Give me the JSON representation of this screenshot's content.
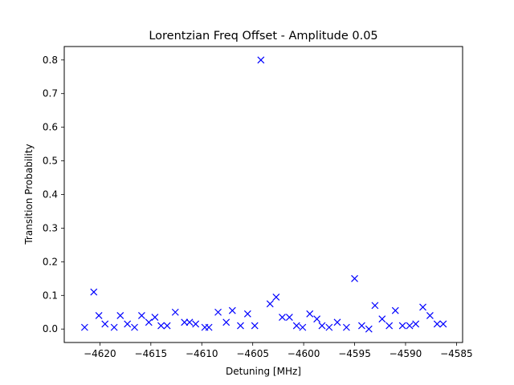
{
  "chart_data": {
    "type": "scatter",
    "title": "Lorentzian Freq Offset - Amplitude 0.05",
    "xlabel": "Detuning [MHz]",
    "ylabel": "Transition Probability",
    "xlim": [
      -4623.5,
      -4584.4
    ],
    "ylim": [
      -0.04,
      0.84
    ],
    "xticks": [
      -4620,
      -4615,
      -4610,
      -4605,
      -4600,
      -4595,
      -4590,
      -4585
    ],
    "xtick_labels": [
      "−4620",
      "−4615",
      "−4610",
      "−4605",
      "−4600",
      "−4595",
      "−4590",
      "−4585"
    ],
    "yticks": [
      0.0,
      0.1,
      0.2,
      0.3,
      0.4,
      0.5,
      0.6,
      0.7,
      0.8
    ],
    "ytick_labels": [
      "0.0",
      "0.1",
      "0.2",
      "0.3",
      "0.4",
      "0.5",
      "0.6",
      "0.7",
      "0.8"
    ],
    "marker": "x",
    "color": "#0000ff",
    "grid": false,
    "series": [
      {
        "x": [
          -4621.5,
          -4620.6,
          -4620.1,
          -4619.5,
          -4618.6,
          -4618.0,
          -4617.3,
          -4616.6,
          -4615.9,
          -4615.2,
          -4614.6,
          -4614.0,
          -4613.4,
          -4612.6,
          -4611.7,
          -4611.2,
          -4610.6,
          -4609.7,
          -4609.3,
          -4608.4,
          -4607.6,
          -4607.0,
          -4606.2,
          -4605.5,
          -4604.8,
          -4604.2,
          -4603.3,
          -4602.7,
          -4602.1,
          -4601.4,
          -4600.7,
          -4600.1,
          -4599.4,
          -4598.7,
          -4598.2,
          -4597.5,
          -4596.7,
          -4595.8,
          -4595.0,
          -4594.3,
          -4593.6,
          -4593.0,
          -4592.3,
          -4591.6,
          -4591.0,
          -4590.3,
          -4589.6,
          -4589.0,
          -4588.3,
          -4587.6,
          -4586.9,
          -4586.3
        ],
        "y": [
          0.005,
          0.11,
          0.04,
          0.015,
          0.005,
          0.04,
          0.015,
          0.005,
          0.04,
          0.02,
          0.035,
          0.01,
          0.01,
          0.05,
          0.02,
          0.02,
          0.015,
          0.005,
          0.005,
          0.05,
          0.02,
          0.055,
          0.01,
          0.045,
          0.01,
          0.8,
          0.075,
          0.095,
          0.035,
          0.035,
          0.01,
          0.005,
          0.045,
          0.03,
          0.01,
          0.005,
          0.02,
          0.005,
          0.15,
          0.01,
          0.0,
          0.07,
          0.03,
          0.01,
          0.055,
          0.01,
          0.01,
          0.015,
          0.065,
          0.04,
          0.015,
          0.015
        ]
      }
    ]
  }
}
